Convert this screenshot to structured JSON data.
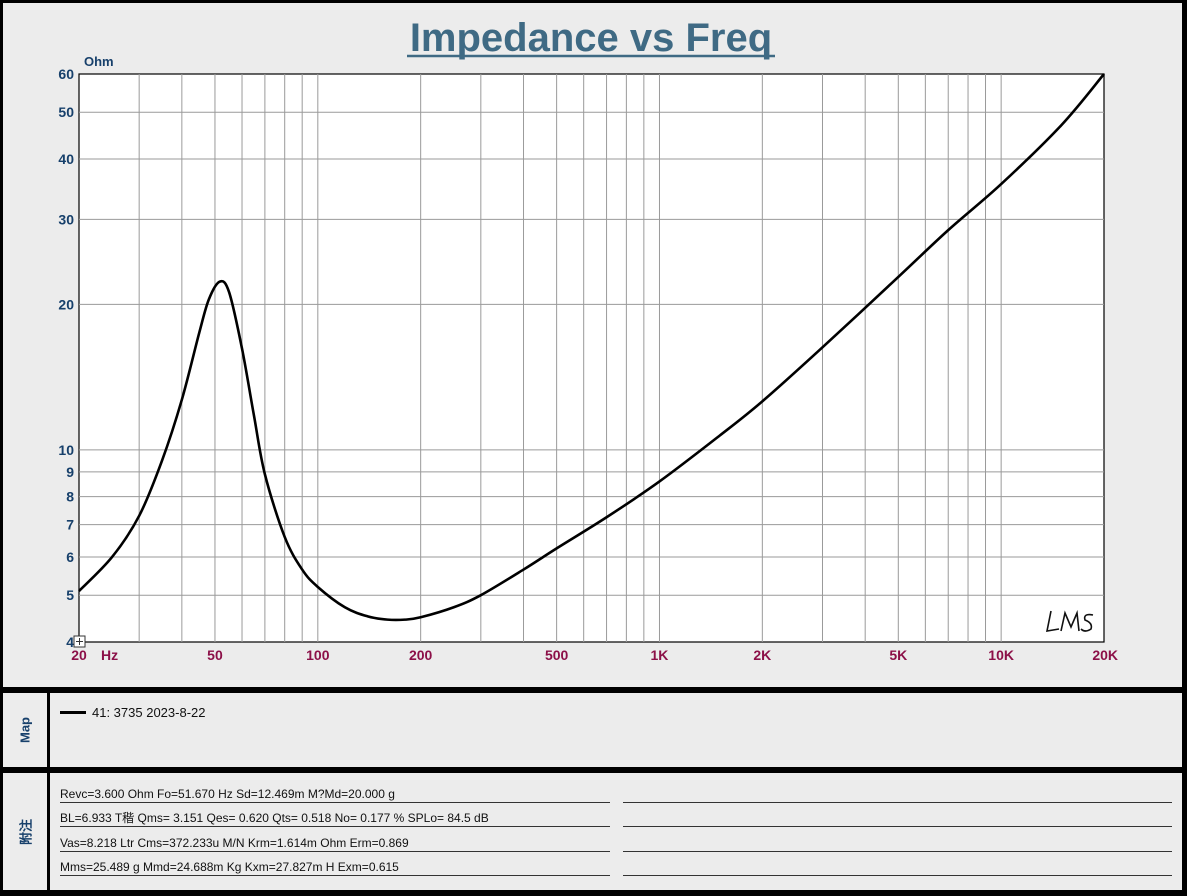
{
  "chart_data": {
    "type": "line",
    "title": "Impedance vs Freq",
    "yunit": "Ohm",
    "xscale": "log",
    "yscale": "log",
    "xlim": [
      20,
      20000
    ],
    "ylim": [
      4,
      60
    ],
    "xticks": [
      {
        "v": 20,
        "label": "20"
      },
      {
        "v": 50,
        "label": "50"
      },
      {
        "v": 100,
        "label": "100"
      },
      {
        "v": 200,
        "label": "200"
      },
      {
        "v": 500,
        "label": "500"
      },
      {
        "v": 1000,
        "label": "1K"
      },
      {
        "v": 2000,
        "label": "2K"
      },
      {
        "v": 5000,
        "label": "5K"
      },
      {
        "v": 10000,
        "label": "10K"
      },
      {
        "v": 20000,
        "label": "20K"
      }
    ],
    "xunit": "Hz",
    "yticks": [
      {
        "v": 4,
        "label": "4"
      },
      {
        "v": 5,
        "label": "5"
      },
      {
        "v": 6,
        "label": "6"
      },
      {
        "v": 7,
        "label": "7"
      },
      {
        "v": 8,
        "label": "8"
      },
      {
        "v": 9,
        "label": "9"
      },
      {
        "v": 10,
        "label": "10"
      },
      {
        "v": 20,
        "label": "20"
      },
      {
        "v": 30,
        "label": "30"
      },
      {
        "v": 40,
        "label": "40"
      },
      {
        "v": 50,
        "label": "50"
      },
      {
        "v": 60,
        "label": "60"
      }
    ],
    "grid": true,
    "watermark": "LMS",
    "series": [
      {
        "name": "41: 3735  2023-8-22",
        "color": "#000000",
        "x": [
          20,
          25,
          30,
          35,
          40,
          45,
          48,
          51.67,
          55,
          60,
          65,
          70,
          80,
          90,
          100,
          120,
          140,
          160,
          180,
          200,
          250,
          300,
          400,
          500,
          700,
          1000,
          1500,
          2000,
          3000,
          5000,
          7000,
          10000,
          15000,
          20000
        ],
        "y": [
          5.1,
          6.0,
          7.3,
          9.5,
          12.7,
          17.5,
          20.5,
          22.3,
          21.2,
          16.2,
          11.8,
          8.9,
          6.6,
          5.65,
          5.2,
          4.72,
          4.52,
          4.45,
          4.45,
          4.5,
          4.72,
          5.0,
          5.65,
          6.25,
          7.25,
          8.6,
          10.7,
          12.6,
          16.3,
          22.8,
          28.5,
          35.5,
          47.0,
          60.0
        ]
      }
    ]
  },
  "map": {
    "label": "Map",
    "legend": "41: 3735  2023-8-22"
  },
  "notes": {
    "label": "附注",
    "lines": [
      "Revc=3.600 Ohm  Fo=51.670 Hz  Sd=12.469m M?Md=20.000 g",
      "BL=6.933 T稭  Qms= 3.151  Qes= 0.620  Qts= 0.518  No= 0.177 %  SPLo= 84.5 dB",
      "Vas=8.218 Ltr  Cms=372.233u M/N  Krm=1.614m Ohm  Erm=0.869",
      "Mms=25.489 g  Mmd=24.688m Kg  Kxm=27.827m H  Exm=0.615"
    ]
  }
}
